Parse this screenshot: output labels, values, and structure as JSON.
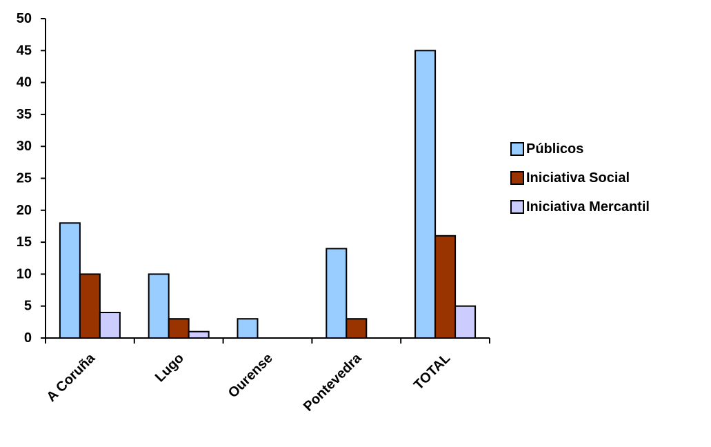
{
  "chart_data": {
    "type": "bar",
    "title": "",
    "xlabel": "",
    "ylabel": "",
    "categories": [
      "A Coruña",
      "Lugo",
      "Ourense",
      "Pontevedra",
      "TOTAL"
    ],
    "series": [
      {
        "name": "Públicos",
        "values": [
          18,
          10,
          3,
          14,
          45
        ],
        "color": "#99CCFF"
      },
      {
        "name": "Iniciativa Social",
        "values": [
          10,
          3,
          0,
          3,
          16
        ],
        "color": "#993300"
      },
      {
        "name": "Iniciativa Mercantil",
        "values": [
          4,
          1,
          0,
          0,
          5
        ],
        "color": "#CCCCFF"
      }
    ],
    "ylim": [
      0,
      50
    ],
    "yticks": [
      0,
      5,
      10,
      15,
      20,
      25,
      30,
      35,
      40,
      45,
      50
    ],
    "grid": false,
    "legend_position": "right",
    "x_tick_rotation_deg": -45
  }
}
